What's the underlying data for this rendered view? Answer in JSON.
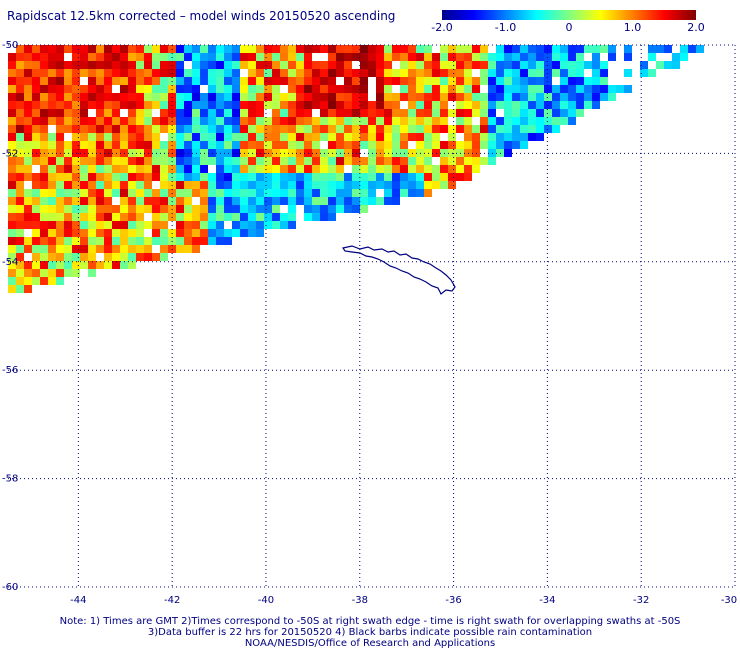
{
  "title": "Rapidscat 12.5km corrected – model winds 20150520 ascending",
  "colorbar": {
    "ticks": [
      "-2.0",
      "-1.0",
      "0",
      "1.0",
      "2.0"
    ],
    "tick_values": [
      -2.0,
      -1.0,
      0,
      1.0,
      2.0
    ],
    "range": [
      -2.0,
      2.0
    ],
    "colormap": "jet"
  },
  "map": {
    "lat_labels": [
      "-50",
      "-52",
      "-54",
      "-56",
      "-58",
      "-60"
    ],
    "lat_values": [
      -50,
      -52,
      -54,
      -56,
      -58,
      -60
    ],
    "lon_labels": [
      "-44",
      "-42",
      "-40",
      "-38",
      "-36",
      "-34",
      "-32",
      "-30"
    ],
    "lon_values": [
      -44,
      -42,
      -40,
      -38,
      -36,
      -34,
      -32,
      -30
    ],
    "grid_color": "#000080",
    "coast_color": "#000080"
  },
  "notes": [
    "Note: 1) Times are GMT 2)Times correspond to -50S at right swath edge - time is right swath for overlapping swaths at -50S",
    "3)Data buffer is 22 hrs for 20150520 4) Black barbs indicate possible rain contamination",
    "NOAA/NESDIS/Office of Research and Applications"
  ]
}
